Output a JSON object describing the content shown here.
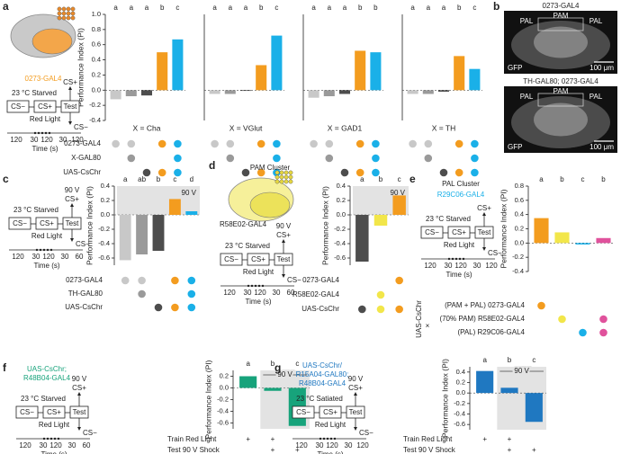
{
  "chart_data": [
    {
      "type": "bar",
      "title": "X = Cha",
      "ylabel": "Performance Index (PI)",
      "categories": [
        null,
        null,
        null,
        null,
        null
      ],
      "values": [
        -0.12,
        -0.08,
        -0.07,
        0.5,
        0.67
      ],
      "colors": [
        "#c8c8c8",
        "#9a9a9a",
        "#4d4d4d",
        "#f39c1f",
        "#1ab0e8"
      ],
      "significance": [
        "a",
        "a",
        "a",
        "b",
        "c"
      ],
      "ylim": [
        -0.4,
        1
      ],
      "yticks": [
        -0.4,
        -0.2,
        {
          "value": 0,
          "label": "0.0"
        },
        0.2,
        0.4,
        0.6,
        0.8,
        {
          "value": 1,
          "label": "1.0"
        }
      ],
      "rows": [
        {
          "label": "0273-GAL4",
          "dots": [
            "#c8c8c8",
            "#c8c8c8",
            null,
            "#f39c1f",
            "#1ab0e8"
          ]
        },
        {
          "label": "X-GAL80",
          "dots": [
            null,
            "#9a9a9a",
            null,
            null,
            "#1ab0e8"
          ]
        },
        {
          "label": "UAS-CsChr",
          "dots": [
            null,
            null,
            "#4d4d4d",
            "#f39c1f",
            "#1ab0e8"
          ]
        }
      ]
    },
    {
      "type": "bar",
      "title": "X = VGlut",
      "categories": [
        null,
        null,
        null,
        null,
        null
      ],
      "values": [
        -0.05,
        -0.05,
        0.0,
        0.33,
        0.72
      ],
      "colors": [
        "#c8c8c8",
        "#9a9a9a",
        "#4d4d4d",
        "#f39c1f",
        "#1ab0e8"
      ],
      "significance": [
        "a",
        "a",
        "a",
        "b",
        "c"
      ],
      "ylim": [
        -0.4,
        1
      ],
      "rows": [
        {
          "dots": [
            "#c8c8c8",
            "#c8c8c8",
            null,
            "#f39c1f",
            "#1ab0e8"
          ]
        },
        {
          "dots": [
            null,
            "#9a9a9a",
            null,
            null,
            "#1ab0e8"
          ]
        },
        {
          "dots": [
            null,
            null,
            "#4d4d4d",
            "#f39c1f",
            "#1ab0e8"
          ]
        }
      ]
    },
    {
      "type": "bar",
      "title": "X = GAD1",
      "categories": [
        null,
        null,
        null,
        null,
        null
      ],
      "values": [
        -0.1,
        -0.08,
        -0.05,
        0.52,
        0.5
      ],
      "colors": [
        "#c8c8c8",
        "#9a9a9a",
        "#4d4d4d",
        "#f39c1f",
        "#1ab0e8"
      ],
      "significance": [
        "a",
        "a",
        "a",
        "b",
        "b"
      ],
      "ylim": [
        -0.4,
        1
      ],
      "rows": [
        {
          "dots": [
            "#c8c8c8",
            "#c8c8c8",
            null,
            "#f39c1f",
            "#1ab0e8"
          ]
        },
        {
          "dots": [
            null,
            "#9a9a9a",
            null,
            null,
            "#1ab0e8"
          ]
        },
        {
          "dots": [
            null,
            null,
            "#4d4d4d",
            "#f39c1f",
            "#1ab0e8"
          ]
        }
      ]
    },
    {
      "type": "bar",
      "title": "X = TH",
      "categories": [
        null,
        null,
        null,
        null,
        null
      ],
      "values": [
        -0.05,
        -0.05,
        -0.02,
        0.45,
        0.28
      ],
      "colors": [
        "#c8c8c8",
        "#9a9a9a",
        "#4d4d4d",
        "#f39c1f",
        "#1ab0e8"
      ],
      "significance": [
        "a",
        "a",
        "a",
        "b",
        "c"
      ],
      "ylim": [
        -0.4,
        1
      ],
      "rows": [
        {
          "dots": [
            "#c8c8c8",
            "#c8c8c8",
            null,
            "#f39c1f",
            "#1ab0e8"
          ]
        },
        {
          "dots": [
            null,
            "#9a9a9a",
            null,
            null,
            "#1ab0e8"
          ]
        },
        {
          "dots": [
            null,
            null,
            "#4d4d4d",
            "#f39c1f",
            "#1ab0e8"
          ]
        }
      ]
    },
    {
      "type": "bar",
      "ylabel": "Performance Index (PI)",
      "shock": "90 V",
      "categories": [
        null,
        null,
        null,
        null,
        null
      ],
      "values": [
        -0.63,
        -0.55,
        -0.5,
        0.22,
        0.05
      ],
      "colors": [
        "#c8c8c8",
        "#9a9a9a",
        "#4d4d4d",
        "#f39c1f",
        "#1ab0e8"
      ],
      "significance": [
        "a",
        "ab",
        "b",
        "c",
        "d"
      ],
      "ylim": [
        -0.7,
        0.4
      ],
      "yticks": [
        -0.6,
        -0.4,
        -0.2,
        {
          "value": 0,
          "label": "0.0"
        },
        0.2,
        0.4
      ],
      "rows": [
        {
          "label": "0273-GAL4",
          "dots": [
            "#c8c8c8",
            "#c8c8c8",
            null,
            "#f39c1f",
            "#1ab0e8"
          ]
        },
        {
          "label": "TH-GAL80",
          "dots": [
            null,
            "#9a9a9a",
            null,
            null,
            "#1ab0e8"
          ]
        },
        {
          "label": "UAS-CsChr",
          "dots": [
            null,
            null,
            "#4d4d4d",
            "#f39c1f",
            "#1ab0e8"
          ]
        }
      ]
    },
    {
      "type": "bar",
      "ylabel": "Performance Index (PI)",
      "shock": "90 V",
      "categories": [
        null,
        null,
        null
      ],
      "values": [
        -0.65,
        -0.15,
        0.27
      ],
      "colors": [
        "#4d4d4d",
        "#f2e64a",
        "#f39c1f"
      ],
      "significance": [
        "a",
        "b",
        "c"
      ],
      "ylim": [
        -0.7,
        0.4
      ],
      "yticks": [
        -0.6,
        -0.4,
        -0.2,
        {
          "value": 0,
          "label": "0.0"
        },
        0.2,
        0.4
      ],
      "rows": [
        {
          "label": "0273-GAL4",
          "dots": [
            null,
            null,
            "#f39c1f"
          ]
        },
        {
          "label": "R58E02-GAL4",
          "dots": [
            null,
            "#f2e64a",
            null
          ]
        },
        {
          "label": "UAS-CsChr",
          "dots": [
            "#4d4d4d",
            "#f2e64a",
            "#f39c1f"
          ]
        }
      ]
    },
    {
      "type": "bar",
      "ylabel": "Performance Index (PI)",
      "row_prefix": "UAS-CsChr",
      "row_cross": "×",
      "categories": [
        null,
        null,
        null,
        null
      ],
      "values": [
        0.35,
        0.15,
        -0.02,
        0.07
      ],
      "colors": [
        "#f39c1f",
        "#f2e64a",
        "#1ab0e8",
        "#e0529c"
      ],
      "significance": [
        "a",
        "b",
        "c",
        "b"
      ],
      "ylim": [
        -0.4,
        0.8
      ],
      "yticks": [
        -0.4,
        -0.2,
        {
          "value": 0,
          "label": "0.0"
        },
        0.2,
        0.4,
        0.6,
        0.8
      ],
      "rows": [
        {
          "label": "(PAM + PAL) 0273-GAL4",
          "dots": [
            "#f39c1f",
            null,
            null,
            null
          ]
        },
        {
          "label": "(70% PAM) R58E02-GAL4",
          "dots": [
            null,
            "#f2e64a",
            null,
            "#e0529c"
          ]
        },
        {
          "label": "(PAL) R29C06-GAL4",
          "dots": [
            null,
            null,
            "#1ab0e8",
            "#e0529c"
          ]
        }
      ]
    },
    {
      "type": "bar",
      "ylabel": "Performance Index (PI)",
      "shock": "90 V",
      "categories": [
        null,
        null,
        null
      ],
      "values": [
        0.2,
        -0.05,
        -0.65
      ],
      "colors": [
        "#17a37b",
        "#17a37b",
        "#17a37b"
      ],
      "significance": [
        "a",
        "b",
        "c"
      ],
      "ylim": [
        -0.7,
        0.3
      ],
      "yticks": [
        -0.6,
        -0.4,
        -0.2,
        {
          "value": 0,
          "label": "0.0"
        },
        0.2
      ],
      "rows": [
        {
          "label": "Train Red Light",
          "marks": [
            "+",
            "+",
            null
          ]
        },
        {
          "label": "Test 90 V Shock",
          "marks": [
            null,
            "+",
            "+"
          ]
        }
      ]
    },
    {
      "type": "bar",
      "ylabel": "Performance Index (PI)",
      "shock": "90 V",
      "categories": [
        null,
        null,
        null
      ],
      "values": [
        0.42,
        0.1,
        -0.55
      ],
      "colors": [
        "#1f78c1",
        "#1f78c1",
        "#1f78c1"
      ],
      "significance": [
        "a",
        "b",
        "c"
      ],
      "ylim": [
        -0.7,
        0.5
      ],
      "yticks": [
        -0.6,
        -0.4,
        -0.2,
        {
          "value": 0,
          "label": "0.0"
        },
        0.2,
        0.4
      ],
      "rows": [
        {
          "label": "Train Red Light",
          "marks": [
            "+",
            "+",
            null
          ]
        },
        {
          "label": "Test 90 V Shock",
          "marks": [
            null,
            "+",
            "+"
          ]
        }
      ]
    }
  ],
  "diagrams": [
    {
      "panel": "a",
      "driver": "0273-GAL4",
      "driver_color": "#f39c1f",
      "condition": "23 °C Starved",
      "boxes": [
        "CS−",
        "CS+",
        "Test"
      ],
      "up": "CS+",
      "down": "CS−",
      "light": "Red Light",
      "times": [
        120,
        30,
        120,
        30,
        120
      ],
      "time_label": "Time (s)"
    },
    {
      "panel": "c",
      "condition": "23 °C Starved",
      "shock": "90 V",
      "boxes": [
        "CS−",
        "CS+",
        "Test"
      ],
      "up": "CS+",
      "down": "CS−",
      "light": "Red Light",
      "times": [
        120,
        30,
        120,
        30,
        60
      ],
      "time_label": "Time (s)"
    },
    {
      "panel": "d",
      "cluster": "PAM Cluster",
      "driver": "R58E02-GAL4",
      "driver_color": "#222222",
      "condition": "23 °C Starved",
      "shock": "90 V",
      "boxes": [
        "CS−",
        "CS+",
        "Test"
      ],
      "up": "CS+",
      "down": "CS−",
      "light": "Red Light",
      "times": [
        120,
        30,
        120,
        30,
        60
      ],
      "time_label": "Time (s)"
    },
    {
      "panel": "e",
      "cluster": "PAL Cluster",
      "driver": "R29C06-GAL4",
      "driver_color": "#1ab0e8",
      "condition": "23 °C Starved",
      "boxes": [
        "CS−",
        "CS+",
        "Test"
      ],
      "up": "CS+",
      "down": "CS−",
      "light": "Red Light",
      "times": [
        120,
        30,
        120,
        30,
        120
      ],
      "time_label": "Time (s)"
    },
    {
      "panel": "f",
      "driver_lines": [
        "UAS-CsChr;",
        "R48B04-GAL4"
      ],
      "driver_color": "#17a37b",
      "condition": "23 °C Starved",
      "shock": "90 V",
      "boxes": [
        "CS−",
        "CS+",
        "Test"
      ],
      "up": "CS+",
      "down": "CS−",
      "light": "Red Light",
      "times": [
        120,
        30,
        120,
        30,
        60
      ],
      "time_label": "Time (s)"
    },
    {
      "panel": "g",
      "driver_lines": [
        "UAS-CsChr/",
        "R15A04-GAL80;",
        "R48B04-GAL4"
      ],
      "driver_color": "#1f78c1",
      "condition": "23 °C Satiated",
      "shock": "90 V",
      "boxes": [
        "CS−",
        "CS+",
        "Test"
      ],
      "up": "CS+",
      "down": "CS−",
      "light": "Red Light",
      "times": [
        120,
        30,
        120,
        30,
        120
      ],
      "time_label": "Time (s)"
    }
  ],
  "images": {
    "panel": "b",
    "items": [
      {
        "title": "0273-GAL4",
        "labels": [
          "PAL",
          "PAM",
          "PAL"
        ],
        "stain": "GFP",
        "scale": "100 μm"
      },
      {
        "title": "TH-GAL80; 0273-GAL4",
        "labels": [
          "PAL",
          "PAM",
          "PAL"
        ],
        "stain": "GFP",
        "scale": "100 μm"
      }
    ]
  }
}
